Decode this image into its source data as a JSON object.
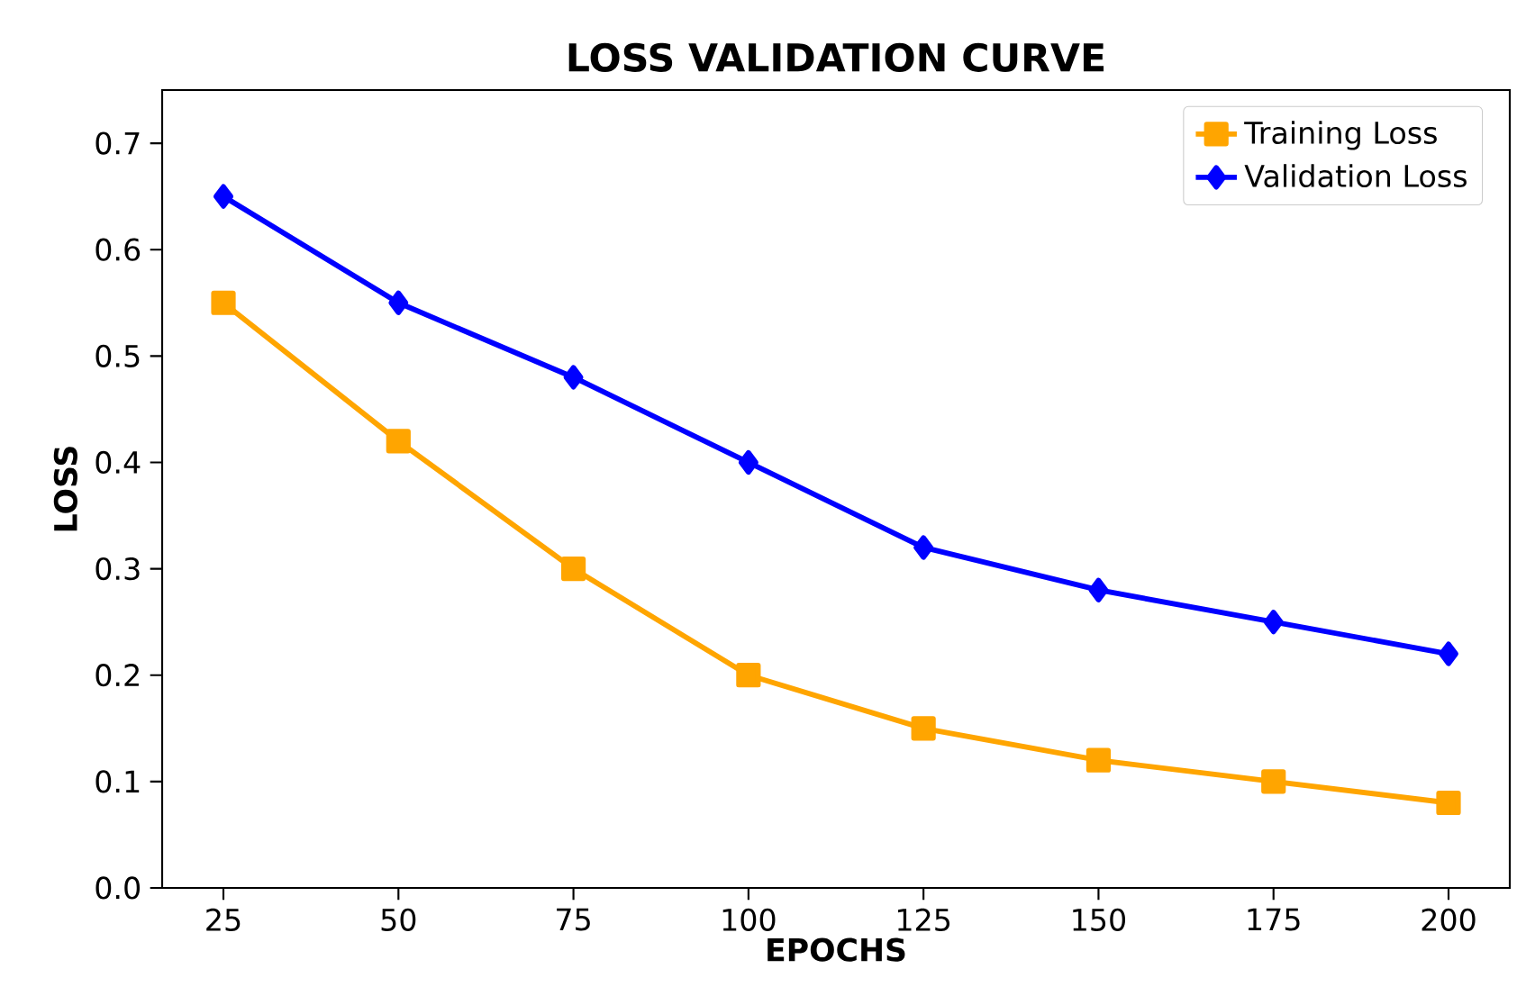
{
  "chart_data": {
    "type": "line",
    "title": "LOSS VALIDATION CURVE",
    "xlabel": "EPOCHS",
    "ylabel": "LOSS",
    "x": [
      25,
      50,
      75,
      100,
      125,
      150,
      175,
      200
    ],
    "series": [
      {
        "name": "Training Loss",
        "color": "#ffa500",
        "marker": "square",
        "values": [
          0.55,
          0.42,
          0.3,
          0.2,
          0.15,
          0.12,
          0.1,
          0.08
        ]
      },
      {
        "name": "Validation Loss",
        "color": "#0000ff",
        "marker": "diamond",
        "values": [
          0.65,
          0.55,
          0.48,
          0.4,
          0.32,
          0.28,
          0.25,
          0.22
        ]
      }
    ],
    "xlim": [
      16.25,
      208.75
    ],
    "xticks": [
      25,
      50,
      75,
      100,
      125,
      150,
      175,
      200
    ],
    "ylim": [
      0,
      0.75
    ],
    "yticks": [
      {
        "value": 0,
        "label": "0.0"
      },
      0.1,
      0.2,
      0.3,
      0.4,
      0.5,
      0.6,
      0.7
    ],
    "legend": "top right",
    "grid": false,
    "line_style": "solid"
  }
}
